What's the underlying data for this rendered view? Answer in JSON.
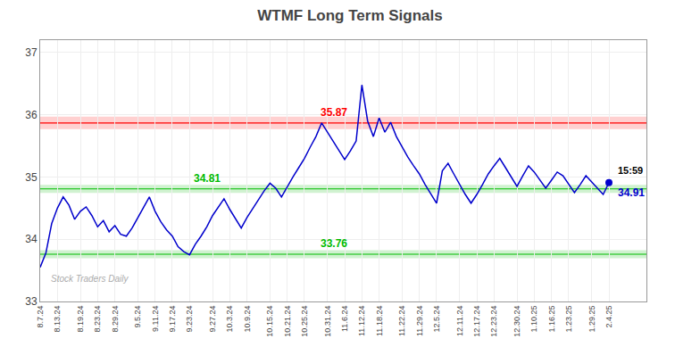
{
  "chart_data": {
    "type": "line",
    "title": "WTMF Long Term Signals",
    "categories": [
      "8.7.24",
      null,
      null,
      "8.13.24",
      null,
      null,
      null,
      "8.19.24",
      null,
      null,
      "8.23.24",
      null,
      null,
      "8.29.24",
      null,
      null,
      null,
      "9.5.24",
      null,
      null,
      "9.11.24",
      null,
      null,
      "9.17.24",
      null,
      null,
      "9.23.24",
      null,
      null,
      null,
      "9.27.24",
      null,
      null,
      "10.3.24",
      null,
      null,
      "10.9.24",
      null,
      null,
      null,
      "10.15.24",
      null,
      null,
      "10.21.24",
      null,
      null,
      "10.25.24",
      null,
      null,
      null,
      "10.31.24",
      null,
      null,
      "11.6.24",
      null,
      null,
      "11.12.24",
      null,
      null,
      "11.18.24",
      null,
      null,
      null,
      "11.22.24",
      null,
      null,
      "11.29.24",
      null,
      null,
      "12.5.24",
      null,
      null,
      null,
      "12.11.24",
      null,
      null,
      "12.17.24",
      null,
      null,
      "12.23.24",
      null,
      null,
      null,
      "12.30.24",
      null,
      null,
      "1.10.25",
      null,
      null,
      "1.16.25",
      null,
      null,
      "1.23.25",
      null,
      null,
      null,
      "1.29.25",
      null,
      null,
      "2.4.25"
    ],
    "values": [
      33.55,
      33.78,
      34.25,
      34.5,
      34.68,
      34.55,
      34.32,
      34.45,
      34.52,
      34.38,
      34.2,
      34.3,
      34.12,
      34.22,
      34.08,
      34.05,
      34.18,
      34.35,
      34.52,
      34.68,
      34.45,
      34.28,
      34.15,
      34.05,
      33.88,
      33.8,
      33.75,
      33.92,
      34.05,
      34.2,
      34.38,
      34.52,
      34.65,
      34.48,
      34.32,
      34.18,
      34.35,
      34.5,
      34.65,
      34.78,
      34.9,
      34.82,
      34.68,
      34.85,
      35.0,
      35.15,
      35.3,
      35.48,
      35.65,
      35.87,
      35.72,
      35.58,
      35.42,
      35.28,
      35.42,
      35.58,
      36.48,
      35.9,
      35.65,
      35.95,
      35.72,
      35.88,
      35.65,
      35.48,
      35.32,
      35.18,
      35.05,
      34.88,
      34.72,
      34.58,
      35.1,
      35.22,
      35.05,
      34.88,
      34.72,
      34.58,
      34.72,
      34.88,
      35.05,
      35.18,
      35.3,
      35.15,
      35.0,
      34.85,
      35.02,
      35.18,
      35.08,
      34.95,
      34.82,
      34.95,
      35.08,
      35.02,
      34.88,
      34.75,
      34.88,
      35.02,
      34.92,
      34.82,
      34.72,
      34.91
    ],
    "color": "#0000cc",
    "reference_lines": [
      {
        "value": 35.87,
        "color": "#ff0000"
      },
      {
        "value": 34.81,
        "color": "#00bb00"
      },
      {
        "value": 33.76,
        "color": "#00bb00"
      }
    ],
    "last_point": {
      "time": "15:59",
      "value": 34.91
    },
    "watermark": "Stock Traders Daily",
    "ylim": [
      33.0,
      37.2
    ],
    "yticks": [
      33,
      34,
      35,
      36,
      37
    ],
    "grid": true
  }
}
